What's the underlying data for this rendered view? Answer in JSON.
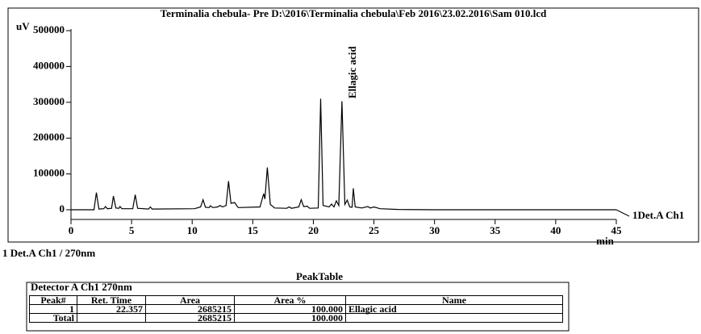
{
  "chart_data": {
    "type": "line",
    "title": "Terminalia chebula- Pre D:\\2016\\Terminalia chebula\\Feb 2016\\23.02.2016\\Sam 010.lcd",
    "y_label": "uV",
    "x_label": "min",
    "footnote": "1 Det.A Ch1 / 270nm",
    "x": [
      0,
      1.9,
      2.1,
      2.3,
      2.7,
      2.85,
      3.0,
      3.35,
      3.5,
      3.7,
      3.95,
      4.05,
      4.2,
      5.1,
      5.3,
      5.5,
      6.4,
      6.55,
      6.7,
      10.2,
      10.7,
      10.9,
      11.1,
      11.4,
      11.5,
      11.7,
      12.1,
      12.3,
      12.5,
      12.8,
      13.0,
      13.2,
      13.5,
      13.8,
      15.6,
      15.9,
      16.0,
      16.2,
      16.45,
      16.8,
      17.8,
      18.0,
      18.2,
      18.8,
      19.0,
      19.2,
      19.5,
      19.7,
      20.4,
      20.6,
      20.8,
      21.3,
      21.5,
      21.7,
      21.9,
      22.1,
      22.36,
      22.6,
      22.8,
      23.0,
      23.2,
      23.3,
      23.45,
      24.0,
      24.5,
      24.7,
      25.0,
      25.5,
      27,
      30,
      45
    ],
    "series": [
      {
        "name": "1Det.A Ch1",
        "color": "#000000",
        "values": [
          0,
          0,
          48000,
          2000,
          3000,
          9000,
          3000,
          4000,
          38000,
          5000,
          4000,
          9000,
          3000,
          3000,
          42000,
          4000,
          2000,
          8000,
          2000,
          3000,
          8000,
          28000,
          7000,
          6000,
          11000,
          6000,
          8000,
          12000,
          8000,
          12000,
          80000,
          18000,
          20000,
          6000,
          8000,
          45000,
          30000,
          118000,
          15000,
          5000,
          4000,
          8000,
          4000,
          8000,
          28000,
          9000,
          10000,
          4000,
          5000,
          310000,
          12000,
          8000,
          16000,
          8000,
          25000,
          12000,
          303000,
          15000,
          27000,
          8000,
          7000,
          60000,
          8000,
          5000,
          9000,
          5000,
          8000,
          3000,
          1000,
          0,
          0
        ]
      }
    ],
    "annotations": [
      {
        "text": "Ellagic acid",
        "x": 22.357
      }
    ],
    "xlim": [
      0,
      45
    ],
    "xticks": [
      0,
      5,
      10,
      15,
      20,
      25,
      30,
      35,
      40,
      45
    ],
    "ylim": [
      -27000,
      500000
    ],
    "yticks": [
      0,
      100000,
      200000,
      300000,
      400000,
      500000
    ]
  },
  "table": {
    "title": "PeakTable",
    "detector": "Detector A Ch1 270nm",
    "columns": [
      "Peak#",
      "Ret. Time",
      "Area",
      "Area %",
      "Name"
    ],
    "rows": [
      [
        "1",
        "22.357",
        "2685215",
        "100.000",
        "Ellagic acid"
      ],
      [
        "Total",
        null,
        "2685215",
        "100.000",
        null
      ]
    ]
  }
}
